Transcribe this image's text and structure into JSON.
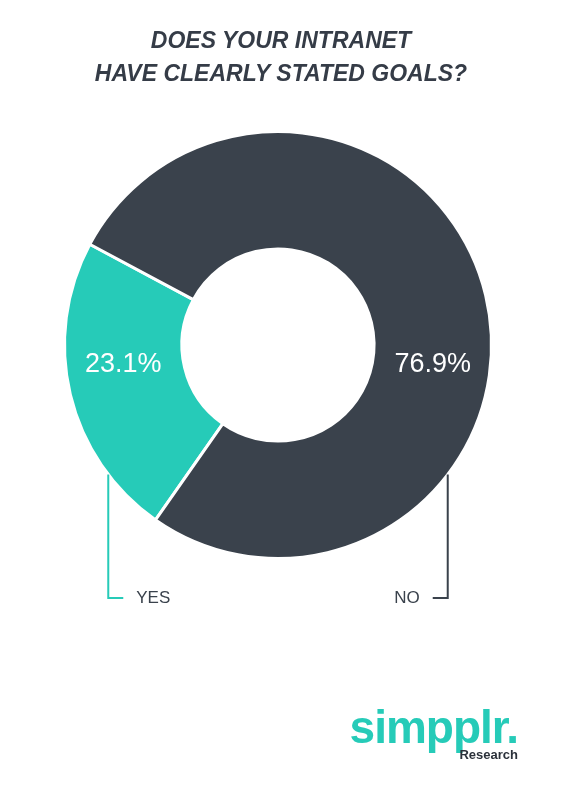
{
  "chart_data": {
    "type": "doughnut",
    "title": "DOES YOUR INTRANET\nHAVE CLEARLY STATED GOALS?",
    "categories": [
      "YES",
      "NO"
    ],
    "values": [
      23.1,
      76.9
    ],
    "value_labels": [
      "23.1%",
      "76.9%"
    ],
    "colors": [
      "#26cbb8",
      "#3a424c"
    ],
    "data_labels": true
  },
  "brand": "simpplr.",
  "brand_note": "Research"
}
